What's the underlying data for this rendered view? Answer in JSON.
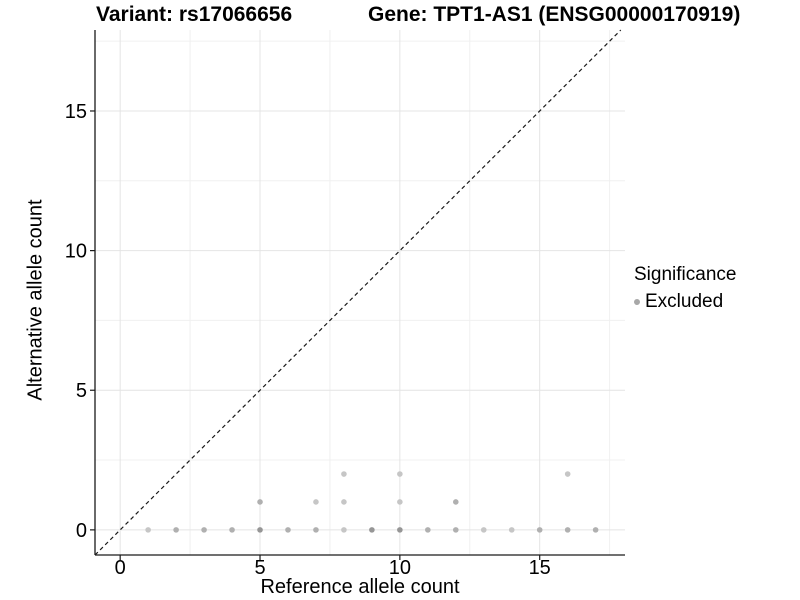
{
  "header": {
    "variant_title": "Variant: rs17066656",
    "gene_title": "Gene: TPT1-AS1 (ENSG00000170919)"
  },
  "legend": {
    "title": "Significance",
    "items": [
      {
        "label": "Excluded",
        "color": "#a8a8a8"
      }
    ]
  },
  "chart_data": {
    "type": "scatter",
    "xlabel": "Reference allele count",
    "ylabel": "Alternative allele count",
    "xlim": [
      -0.9,
      18.05
    ],
    "ylim": [
      -0.9,
      17.9
    ],
    "x_ticks": [
      0,
      5,
      10,
      15
    ],
    "y_ticks": [
      0,
      5,
      10,
      15
    ],
    "x_minor": [
      2.5,
      7.5,
      12.5,
      17.5
    ],
    "y_minor": [
      2.5,
      7.5,
      12.5,
      17.5
    ],
    "grid": true,
    "legend_position": "right",
    "diagonal": {
      "style": "dashed",
      "from": [
        -0.9,
        -0.9
      ],
      "to": [
        17.9,
        17.9
      ],
      "color": "#1a1a1a"
    },
    "series": [
      {
        "name": "Excluded",
        "points": [
          [
            1,
            0,
            "l"
          ],
          [
            2,
            0,
            "m"
          ],
          [
            3,
            0,
            "m"
          ],
          [
            4,
            0,
            "m"
          ],
          [
            5,
            0,
            "d"
          ],
          [
            6,
            0,
            "m"
          ],
          [
            7,
            0,
            "m"
          ],
          [
            8,
            0,
            "l"
          ],
          [
            9,
            0,
            "d"
          ],
          [
            10,
            0,
            "d"
          ],
          [
            11,
            0,
            "m"
          ],
          [
            12,
            0,
            "m"
          ],
          [
            13,
            0,
            "l"
          ],
          [
            14,
            0,
            "l"
          ],
          [
            15,
            0,
            "m"
          ],
          [
            16,
            0,
            "m"
          ],
          [
            17,
            0,
            "m"
          ],
          [
            5,
            1,
            "m"
          ],
          [
            7,
            1,
            "l"
          ],
          [
            8,
            1,
            "l"
          ],
          [
            10,
            1,
            "l"
          ],
          [
            12,
            1,
            "m"
          ],
          [
            8,
            2,
            "l"
          ],
          [
            10,
            2,
            "l"
          ],
          [
            16,
            2,
            "l"
          ]
        ]
      }
    ],
    "shade_colors": {
      "l": "#c6c6c6",
      "m": "#b0b0b0",
      "d": "#969696"
    },
    "point_radius": 2.8,
    "colors": {
      "grid_major": "#e4e4e4",
      "grid_minor": "#f0f0f0",
      "axis": "#1a1a1a"
    }
  }
}
